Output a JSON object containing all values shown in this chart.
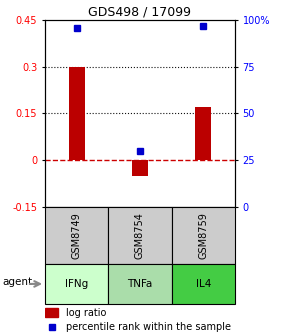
{
  "title": "GDS498 / 17099",
  "samples": [
    "GSM8749",
    "GSM8754",
    "GSM8759"
  ],
  "agents": [
    "IFNg",
    "TNFa",
    "IL4"
  ],
  "log_ratios": [
    0.3,
    -0.05,
    0.17
  ],
  "percentile_ranks": [
    96,
    30,
    97
  ],
  "ylim_left": [
    -0.15,
    0.45
  ],
  "ylim_right": [
    0,
    100
  ],
  "yticks_left": [
    -0.15,
    0,
    0.15,
    0.3,
    0.45
  ],
  "yticks_right": [
    0,
    25,
    50,
    75,
    100
  ],
  "ytick_labels_left": [
    "-0.15",
    "0",
    "0.15",
    "0.3",
    "0.45"
  ],
  "ytick_labels_right": [
    "0",
    "25",
    "50",
    "75",
    "100%"
  ],
  "bar_color": "#bb0000",
  "dot_color": "#0000cc",
  "agent_colors": [
    "#ccffcc",
    "#aaddaa",
    "#44cc44"
  ],
  "sample_bg": "#cccccc",
  "hline_color": "#cc0000",
  "dotted_color": "#111111",
  "bar_width": 0.25
}
